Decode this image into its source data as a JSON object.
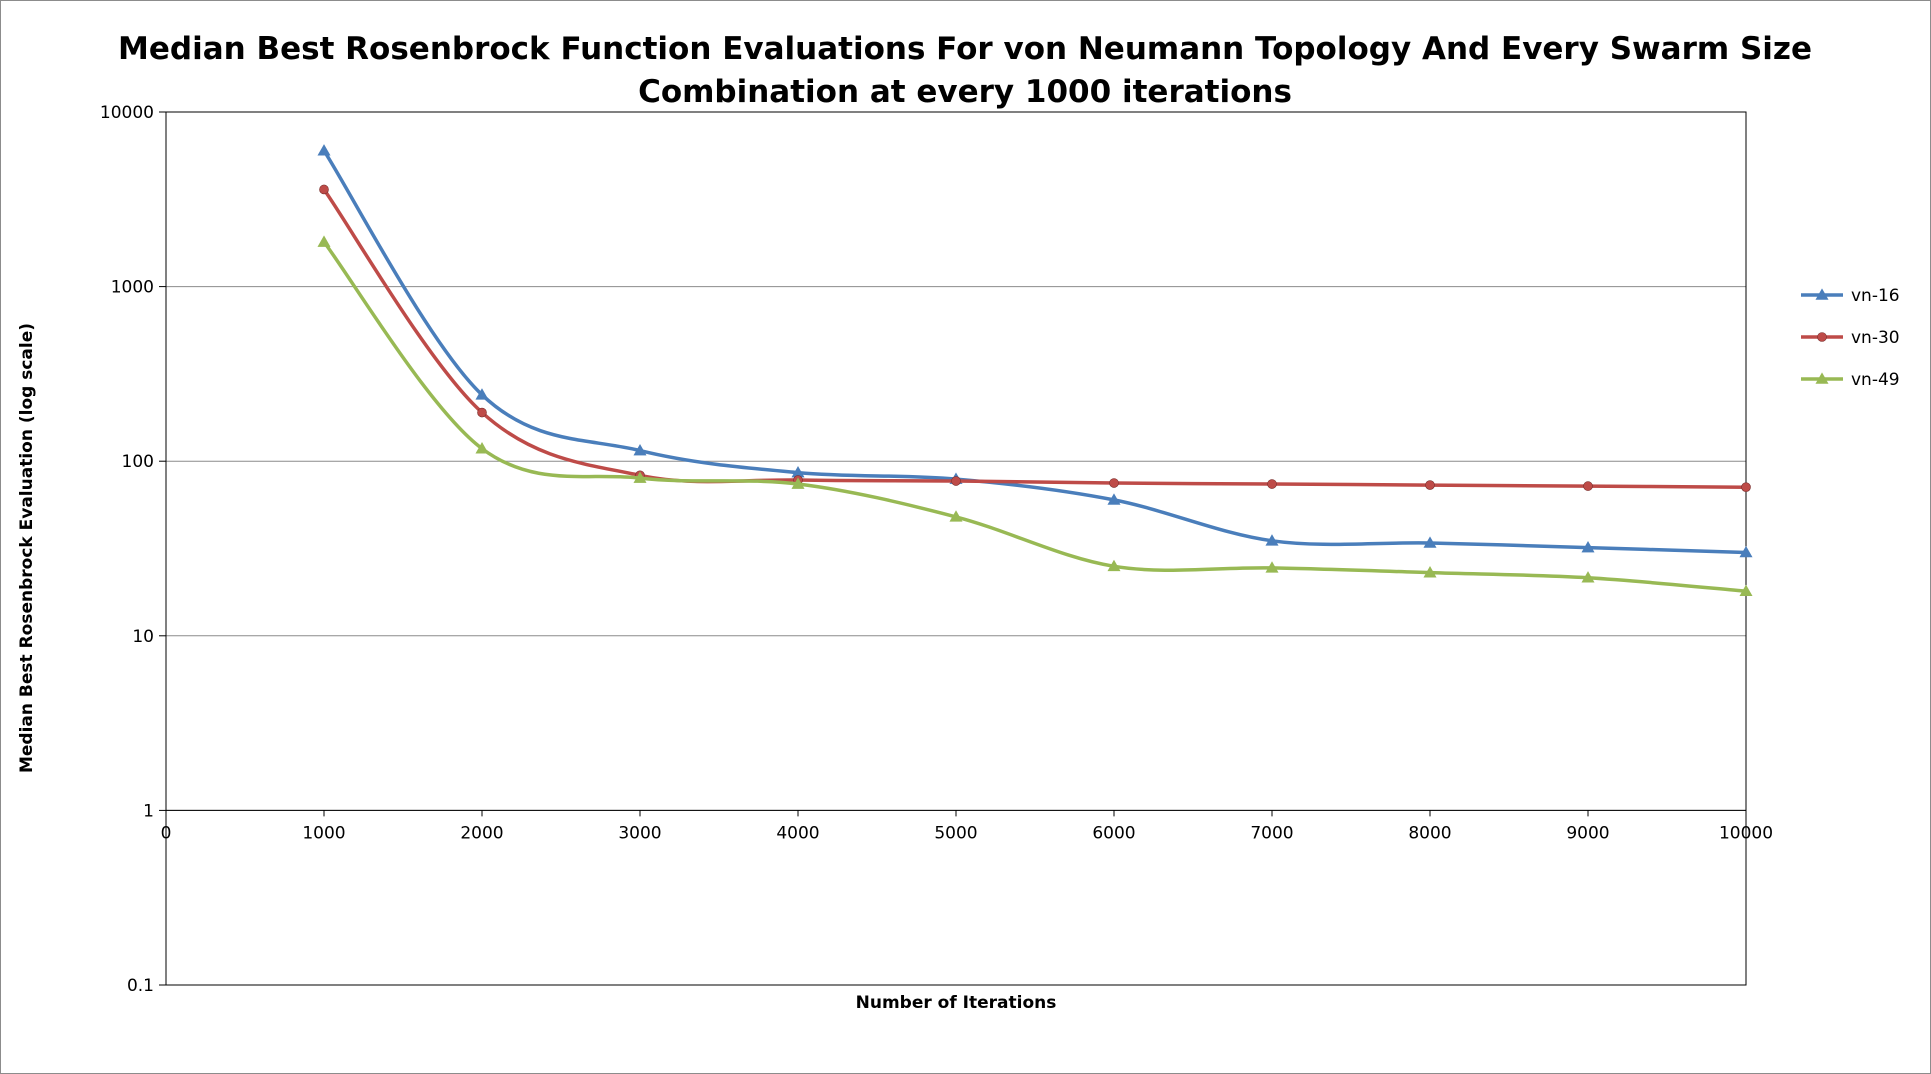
{
  "chart_data": {
    "type": "line",
    "title_lines": [
      "Median Best Rosenbrock Function Evaluations For von Neumann Topology And Every Swarm Size",
      "Combination at every 1000 iterations"
    ],
    "xlabel": "Number of Iterations",
    "ylabel": "Median Best Rosenbrock Evaluation (log scale)",
    "y_scale": "log",
    "xlim": [
      0,
      10000
    ],
    "ylim": [
      0.1,
      10000
    ],
    "x_ticks": [
      "0",
      "1000",
      "2000",
      "3000",
      "4000",
      "5000",
      "6000",
      "7000",
      "8000",
      "9000",
      "10000"
    ],
    "y_ticks": [
      "0.1",
      "1",
      "10",
      "100",
      "1000",
      "10000"
    ],
    "grid": "horizontal major",
    "legend_position": "right",
    "x": [
      1000,
      2000,
      3000,
      4000,
      5000,
      6000,
      7000,
      8000,
      9000,
      10000
    ],
    "series": [
      {
        "name": "vn-16",
        "color": "#4a7ebb",
        "marker": "triangle",
        "values": [
          6000,
          240,
          115,
          86,
          79,
          60,
          35,
          34,
          32,
          30
        ]
      },
      {
        "name": "vn-30",
        "color": "#be4b48",
        "marker": "circle",
        "values": [
          3600,
          190,
          83,
          78,
          77,
          75,
          74,
          73,
          72,
          71
        ]
      },
      {
        "name": "vn-49",
        "color": "#98b954",
        "marker": "triangle",
        "values": [
          1800,
          118,
          80,
          74,
          48,
          25,
          24.5,
          23,
          21.5,
          18
        ]
      }
    ]
  }
}
